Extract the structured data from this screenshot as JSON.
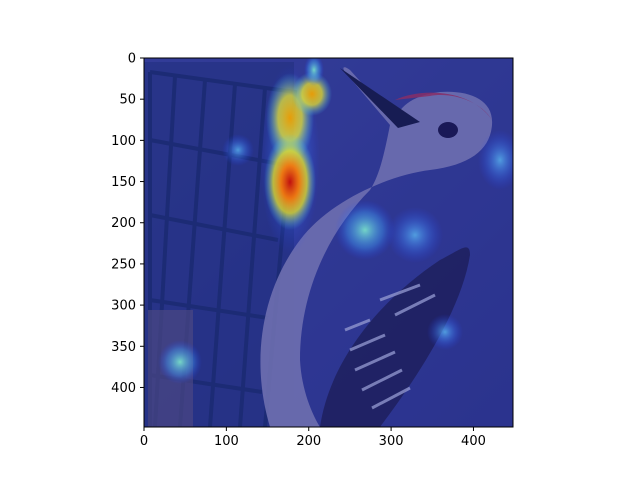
{
  "figure": {
    "description_colors": {
      "background": "#ffffff",
      "axis": "#000000",
      "overlay_base": "#2b2f8a"
    },
    "axes": {
      "x_ticks": [
        0,
        100,
        200,
        300,
        400
      ],
      "y_ticks": [
        0,
        50,
        100,
        150,
        200,
        250,
        300,
        350,
        400
      ],
      "x_range": [
        0,
        448
      ],
      "y_range": [
        448,
        0
      ]
    },
    "image": {
      "subject_icon": "woodpecker-photo-icon",
      "overlay_type": "heatmap",
      "hotspots": [
        {
          "x": 178,
          "y": 150,
          "intensity": 1.0
        },
        {
          "x": 178,
          "y": 70,
          "intensity": 0.85
        },
        {
          "x": 205,
          "y": 45,
          "intensity": 0.7
        },
        {
          "x": 270,
          "y": 210,
          "intensity": 0.45
        },
        {
          "x": 330,
          "y": 230,
          "intensity": 0.35
        },
        {
          "x": 45,
          "y": 370,
          "intensity": 0.35
        },
        {
          "x": 365,
          "y": 330,
          "intensity": 0.3
        },
        {
          "x": 430,
          "y": 130,
          "intensity": 0.3
        }
      ]
    }
  }
}
